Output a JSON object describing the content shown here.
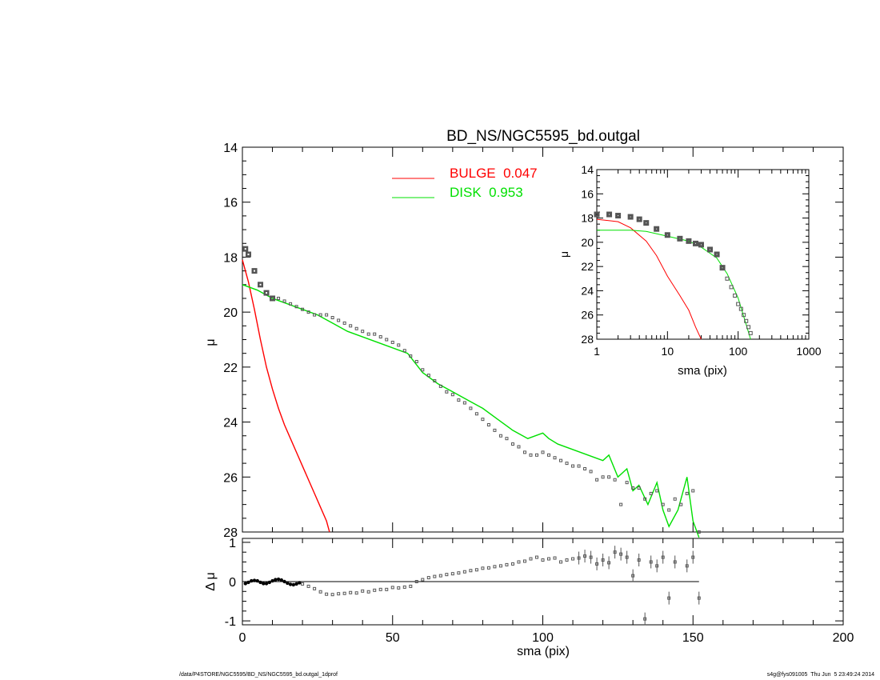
{
  "title": "BD_NS/NGC5595_bd.outgal",
  "footer": {
    "left": "/data/P4STORE/NGC5595/BD_NS/NGC5595_bd.outgal_1dprof",
    "right": "s4g@fys091005  Thu Jun  5 23:49:24 2014"
  },
  "colors": {
    "bulge": "#ff0000",
    "disk": "#00e000",
    "data": "#555555",
    "axis": "#000000"
  },
  "legend": [
    {
      "label": "BULGE  0.047",
      "color": "#ff0000"
    },
    {
      "label": "DISK  0.953",
      "color": "#00e000"
    }
  ],
  "chart_data": [
    {
      "panel": "main",
      "type": "line",
      "ylabel": "μ",
      "xlim": [
        0,
        200
      ],
      "ylim": [
        28,
        14
      ],
      "yticks": [
        14,
        16,
        18,
        20,
        22,
        24,
        26,
        28
      ],
      "y_inverted": true,
      "series": [
        {
          "name": "BULGE  0.047",
          "color": "#ff0000",
          "x": [
            0,
            2,
            4,
            6,
            8,
            10,
            12,
            14,
            16,
            18,
            20,
            22,
            24,
            26,
            28,
            29
          ],
          "y": [
            18.1,
            18.9,
            19.9,
            21.0,
            22.0,
            22.8,
            23.5,
            24.1,
            24.6,
            25.1,
            25.6,
            26.1,
            26.6,
            27.1,
            27.6,
            28.0
          ]
        },
        {
          "name": "DISK  0.953",
          "color": "#00e000",
          "x": [
            0,
            5,
            10,
            15,
            20,
            25,
            30,
            35,
            40,
            45,
            50,
            55,
            60,
            65,
            70,
            75,
            80,
            85,
            90,
            95,
            100,
            102,
            105,
            110,
            115,
            120,
            122,
            125,
            128,
            130,
            132,
            135,
            138,
            140,
            142,
            145,
            148,
            150,
            152
          ],
          "y": [
            19.0,
            19.2,
            19.5,
            19.7,
            19.9,
            20.1,
            20.4,
            20.7,
            20.9,
            21.1,
            21.3,
            21.5,
            22.2,
            22.6,
            22.9,
            23.2,
            23.5,
            23.9,
            24.3,
            24.6,
            24.4,
            24.6,
            24.8,
            25.0,
            25.2,
            25.4,
            25.2,
            26.0,
            25.7,
            26.5,
            26.3,
            27.0,
            26.2,
            27.2,
            27.8,
            27.2,
            26.0,
            27.6,
            28.2
          ]
        },
        {
          "name": "",
          "color": "#555555",
          "marker": "square",
          "x": [
            1,
            2,
            4,
            6,
            8,
            10,
            12,
            14,
            16,
            18,
            20,
            22,
            24,
            26,
            28,
            30,
            32,
            34,
            36,
            38,
            40,
            42,
            44,
            46,
            48,
            50,
            52,
            54,
            56,
            58,
            60,
            62,
            64,
            66,
            68,
            70,
            72,
            74,
            76,
            78,
            80,
            82,
            84,
            86,
            88,
            90,
            92,
            94,
            96,
            98,
            100,
            102,
            104,
            106,
            108,
            110,
            112,
            114,
            116,
            118,
            120,
            122,
            124,
            126,
            128,
            130,
            132,
            134,
            136,
            138,
            140,
            142,
            144,
            146,
            148,
            150,
            152
          ],
          "y": [
            17.7,
            17.9,
            18.5,
            19.0,
            19.3,
            19.5,
            19.5,
            19.6,
            19.7,
            19.8,
            19.9,
            20.0,
            20.1,
            20.1,
            20.1,
            20.2,
            20.3,
            20.4,
            20.5,
            20.6,
            20.7,
            20.8,
            20.8,
            20.9,
            21.0,
            21.1,
            21.2,
            21.4,
            21.6,
            21.8,
            22.1,
            22.3,
            22.5,
            22.7,
            22.9,
            23.0,
            23.2,
            23.3,
            23.5,
            23.7,
            23.9,
            24.1,
            24.3,
            24.5,
            24.6,
            24.8,
            24.9,
            25.1,
            25.2,
            25.2,
            25.1,
            25.2,
            25.3,
            25.4,
            25.5,
            25.6,
            25.6,
            25.7,
            25.8,
            26.1,
            26.0,
            26.0,
            26.1,
            27.0,
            26.2,
            26.4,
            26.4,
            26.8,
            26.6,
            26.5,
            27.0,
            27.2,
            26.8,
            27.0,
            26.6,
            26.5,
            28.0
          ]
        }
      ]
    },
    {
      "panel": "residual",
      "type": "scatter",
      "xlabel": "sma (pix)",
      "ylabel": "Δ μ",
      "xlim": [
        0,
        200
      ],
      "ylim": [
        -1.1,
        1.1
      ],
      "xticks": [
        0,
        50,
        100,
        150,
        200
      ],
      "yticks": [
        -1,
        0,
        1
      ],
      "zero_line": true,
      "series": [
        {
          "name": "",
          "color": "#555555",
          "marker": "square",
          "x": [
            1,
            2,
            3,
            4,
            5,
            6,
            7,
            8,
            9,
            10,
            11,
            12,
            13,
            14,
            15,
            16,
            17,
            18,
            19,
            20,
            22,
            24,
            26,
            28,
            30,
            32,
            34,
            36,
            38,
            40,
            42,
            44,
            46,
            48,
            50,
            52,
            54,
            56,
            58,
            60,
            62,
            64,
            66,
            68,
            70,
            72,
            74,
            76,
            78,
            80,
            82,
            84,
            86,
            88,
            90,
            92,
            94,
            96,
            98,
            100,
            102,
            104,
            106,
            108,
            110,
            112,
            114,
            116,
            118,
            120,
            122,
            124,
            126,
            128,
            130,
            132,
            134,
            136,
            138,
            140,
            142,
            144,
            148,
            150,
            152
          ],
          "y": [
            -0.05,
            -0.02,
            0.02,
            0.03,
            0.02,
            -0.02,
            -0.05,
            -0.05,
            -0.02,
            0.02,
            0.05,
            0.06,
            0.04,
            0.0,
            -0.04,
            -0.07,
            -0.08,
            -0.06,
            -0.03,
            -0.06,
            -0.12,
            -0.18,
            -0.26,
            -0.32,
            -0.33,
            -0.31,
            -0.3,
            -0.28,
            -0.29,
            -0.24,
            -0.26,
            -0.22,
            -0.2,
            -0.2,
            -0.15,
            -0.16,
            -0.14,
            -0.12,
            0.0,
            0.05,
            0.1,
            0.13,
            0.15,
            0.18,
            0.2,
            0.22,
            0.25,
            0.28,
            0.3,
            0.34,
            0.35,
            0.38,
            0.4,
            0.43,
            0.45,
            0.5,
            0.52,
            0.58,
            0.62,
            0.55,
            0.58,
            0.6,
            0.5,
            0.55,
            0.58,
            0.6,
            0.65,
            0.62,
            0.45,
            0.55,
            0.48,
            0.75,
            0.7,
            0.62,
            0.15,
            0.55,
            -0.95,
            0.5,
            0.4,
            0.62,
            -0.42,
            0.5,
            0.4,
            0.62,
            -0.42
          ]
        }
      ]
    },
    {
      "panel": "inset",
      "type": "line",
      "xlabel": "sma (pix)",
      "ylabel": "μ",
      "xscale": "log",
      "xlim": [
        1,
        1000
      ],
      "ylim": [
        28,
        14
      ],
      "xticks": [
        1,
        10,
        100,
        1000
      ],
      "yticks": [
        14,
        16,
        18,
        20,
        22,
        24,
        26,
        28
      ],
      "series": [
        {
          "name": "BULGE  0.047",
          "color": "#ff0000",
          "x": [
            1,
            2,
            3,
            5,
            7,
            10,
            15,
            20,
            25,
            30
          ],
          "y": [
            18.1,
            18.3,
            18.8,
            19.9,
            21.1,
            22.8,
            24.4,
            25.6,
            27.0,
            28.0
          ]
        },
        {
          "name": "DISK  0.953",
          "color": "#00e000",
          "x": [
            1,
            3,
            5,
            10,
            20,
            30,
            50,
            70,
            100,
            150
          ],
          "y": [
            19.0,
            19.0,
            19.1,
            19.5,
            19.9,
            20.4,
            21.3,
            22.6,
            24.6,
            28.0
          ]
        },
        {
          "name": "",
          "color": "#555555",
          "marker": "square",
          "x": [
            1,
            1.5,
            2,
            3,
            4,
            5,
            7,
            10,
            15,
            20,
            25,
            30,
            40,
            50,
            60,
            70,
            80,
            90,
            100,
            110,
            120,
            130,
            140,
            150
          ],
          "y": [
            17.7,
            17.7,
            17.8,
            17.9,
            18.1,
            18.4,
            18.9,
            19.4,
            19.7,
            19.9,
            20.1,
            20.2,
            20.6,
            21.0,
            22.1,
            23.0,
            23.7,
            24.4,
            25.1,
            25.5,
            26.0,
            26.5,
            27.0,
            27.5
          ]
        }
      ]
    }
  ]
}
